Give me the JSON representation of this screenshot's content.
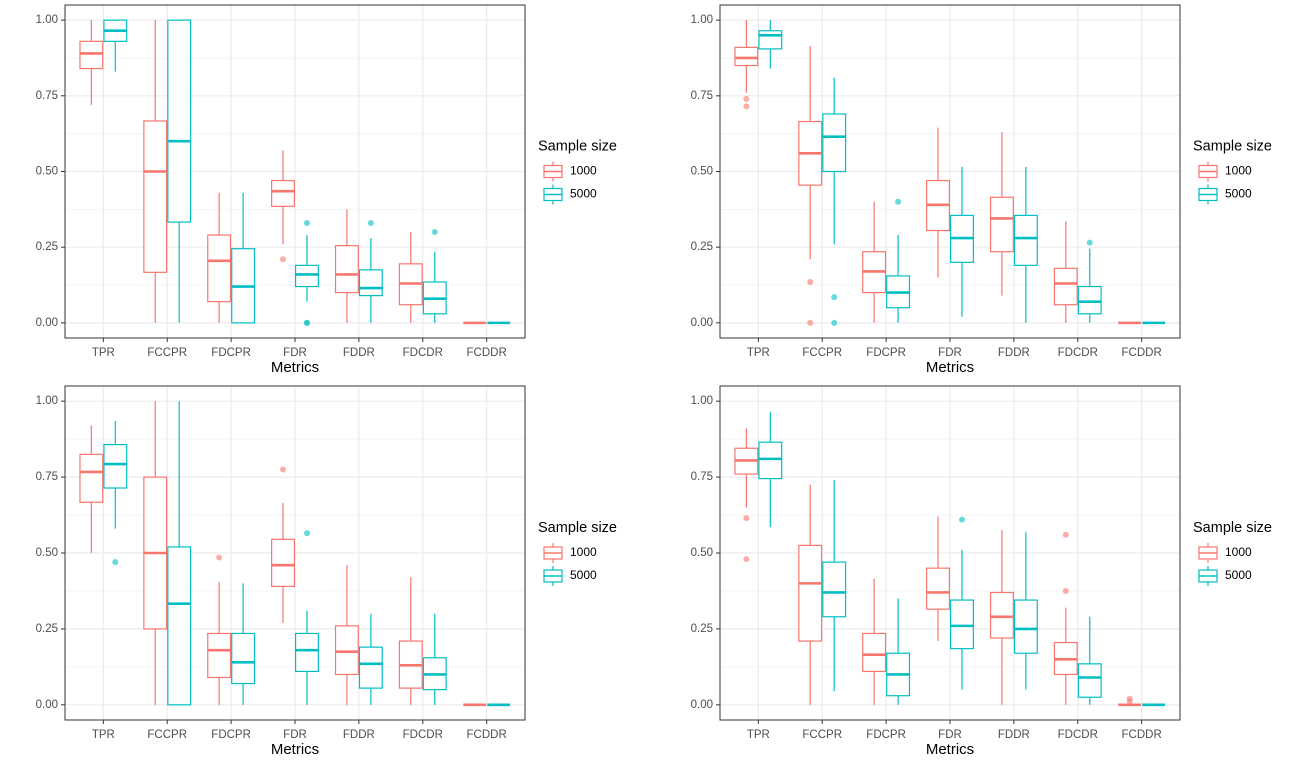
{
  "chart_data": [
    {
      "type": "box",
      "xlabel": "Metrics",
      "legend_title": "Sample size",
      "categories": [
        "TPR",
        "FCCPR",
        "FDCPR",
        "FDR",
        "FDDR",
        "FDCDR",
        "FCDDR"
      ],
      "ylim": [
        -0.05,
        1.05
      ],
      "yticks": [
        {
          "value": 0,
          "label": "0.00"
        },
        {
          "value": 0.25,
          "label": "0.25"
        },
        {
          "value": 0.5,
          "label": "0.50"
        },
        {
          "value": 0.75,
          "label": "0.75"
        },
        {
          "value": 1,
          "label": "1.00"
        }
      ],
      "grid": true,
      "series": [
        {
          "name": "1000",
          "color": "#f8766d",
          "values": [
            {
              "low": 0.72,
              "q1": 0.84,
              "median": 0.89,
              "q3": 0.93,
              "high": 1.0,
              "outliers": []
            },
            {
              "low": 0,
              "q1": 0.167,
              "median": 0.5,
              "q3": 0.667,
              "high": 1.0,
              "outliers": []
            },
            {
              "low": 0,
              "q1": 0.07,
              "median": 0.205,
              "q3": 0.29,
              "high": 0.43,
              "outliers": []
            },
            {
              "low": 0.26,
              "q1": 0.385,
              "median": 0.435,
              "q3": 0.47,
              "high": 0.57,
              "outliers": [
                0.21
              ]
            },
            {
              "low": 0,
              "q1": 0.1,
              "median": 0.16,
              "q3": 0.255,
              "high": 0.375,
              "outliers": []
            },
            {
              "low": 0,
              "q1": 0.06,
              "median": 0.13,
              "q3": 0.195,
              "high": 0.3,
              "outliers": []
            },
            {
              "low": 0,
              "q1": 0,
              "median": 0,
              "q3": 0,
              "high": 0,
              "outliers": []
            }
          ]
        },
        {
          "name": "5000",
          "color": "#00bfc4",
          "values": [
            {
              "low": 0.83,
              "q1": 0.93,
              "median": 0.965,
              "q3": 1.0,
              "high": 1.0,
              "outliers": []
            },
            {
              "low": 0,
              "q1": 0.333,
              "median": 0.6,
              "q3": 1.0,
              "high": 1.0,
              "outliers": []
            },
            {
              "low": 0,
              "q1": 0,
              "median": 0.12,
              "q3": 0.245,
              "high": 0.43,
              "outliers": []
            },
            {
              "low": 0.07,
              "q1": 0.12,
              "median": 0.16,
              "q3": 0.19,
              "high": 0.29,
              "outliers": [
                0.33,
                0,
                0
              ]
            },
            {
              "low": 0,
              "q1": 0.09,
              "median": 0.115,
              "q3": 0.175,
              "high": 0.28,
              "outliers": [
                0.33
              ]
            },
            {
              "low": 0,
              "q1": 0.03,
              "median": 0.08,
              "q3": 0.135,
              "high": 0.235,
              "outliers": [
                0.3
              ]
            },
            {
              "low": 0,
              "q1": 0,
              "median": 0,
              "q3": 0,
              "high": 0,
              "outliers": []
            }
          ]
        }
      ]
    },
    {
      "type": "box",
      "xlabel": "Metrics",
      "legend_title": "Sample size",
      "categories": [
        "TPR",
        "FCCPR",
        "FDCPR",
        "FDR",
        "FDDR",
        "FDCDR",
        "FCDDR"
      ],
      "ylim": [
        -0.05,
        1.05
      ],
      "yticks": [
        {
          "value": 0,
          "label": "0.00"
        },
        {
          "value": 0.25,
          "label": "0.25"
        },
        {
          "value": 0.5,
          "label": "0.50"
        },
        {
          "value": 0.75,
          "label": "0.75"
        },
        {
          "value": 1,
          "label": "1.00"
        }
      ],
      "grid": true,
      "series": [
        {
          "name": "1000",
          "color": "#f8766d",
          "values": [
            {
              "low": 0.76,
              "q1": 0.85,
              "median": 0.875,
              "q3": 0.91,
              "high": 1.0,
              "outliers": [
                0.74,
                0.715
              ]
            },
            {
              "low": 0.21,
              "q1": 0.455,
              "median": 0.56,
              "q3": 0.665,
              "high": 0.915,
              "outliers": [
                0.135,
                0
              ]
            },
            {
              "low": 0,
              "q1": 0.1,
              "median": 0.17,
              "q3": 0.235,
              "high": 0.4,
              "outliers": []
            },
            {
              "low": 0.15,
              "q1": 0.305,
              "median": 0.39,
              "q3": 0.47,
              "high": 0.645,
              "outliers": []
            },
            {
              "low": 0.09,
              "q1": 0.235,
              "median": 0.345,
              "q3": 0.415,
              "high": 0.63,
              "outliers": []
            },
            {
              "low": 0,
              "q1": 0.06,
              "median": 0.13,
              "q3": 0.18,
              "high": 0.335,
              "outliers": []
            },
            {
              "low": 0,
              "q1": 0,
              "median": 0,
              "q3": 0,
              "high": 0,
              "outliers": []
            }
          ]
        },
        {
          "name": "5000",
          "color": "#00bfc4",
          "values": [
            {
              "low": 0.84,
              "q1": 0.905,
              "median": 0.95,
              "q3": 0.965,
              "high": 1.0,
              "outliers": []
            },
            {
              "low": 0.26,
              "q1": 0.5,
              "median": 0.615,
              "q3": 0.69,
              "high": 0.81,
              "outliers": [
                0.085,
                0
              ]
            },
            {
              "low": 0,
              "q1": 0.05,
              "median": 0.1,
              "q3": 0.155,
              "high": 0.29,
              "outliers": [
                0.4
              ]
            },
            {
              "low": 0.02,
              "q1": 0.2,
              "median": 0.28,
              "q3": 0.355,
              "high": 0.515,
              "outliers": []
            },
            {
              "low": 0,
              "q1": 0.19,
              "median": 0.28,
              "q3": 0.355,
              "high": 0.515,
              "outliers": []
            },
            {
              "low": 0,
              "q1": 0.03,
              "median": 0.07,
              "q3": 0.12,
              "high": 0.245,
              "outliers": [
                0.265
              ]
            },
            {
              "low": 0,
              "q1": 0,
              "median": 0,
              "q3": 0,
              "high": 0,
              "outliers": []
            }
          ]
        }
      ]
    },
    {
      "type": "box",
      "xlabel": "Metrics",
      "legend_title": "Sample size",
      "categories": [
        "TPR",
        "FCCPR",
        "FDCPR",
        "FDR",
        "FDDR",
        "FDCDR",
        "FCDDR"
      ],
      "ylim": [
        -0.05,
        1.05
      ],
      "yticks": [
        {
          "value": 0,
          "label": "0.00"
        },
        {
          "value": 0.25,
          "label": "0.25"
        },
        {
          "value": 0.5,
          "label": "0.50"
        },
        {
          "value": 0.75,
          "label": "0.75"
        },
        {
          "value": 1,
          "label": "1.00"
        }
      ],
      "grid": true,
      "series": [
        {
          "name": "1000",
          "color": "#f8766d",
          "values": [
            {
              "low": 0.5,
              "q1": 0.667,
              "median": 0.767,
              "q3": 0.825,
              "high": 0.92,
              "outliers": []
            },
            {
              "low": 0,
              "q1": 0.25,
              "median": 0.5,
              "q3": 0.75,
              "high": 1.0,
              "outliers": []
            },
            {
              "low": 0,
              "q1": 0.09,
              "median": 0.18,
              "q3": 0.235,
              "high": 0.405,
              "outliers": [
                0.485
              ]
            },
            {
              "low": 0.27,
              "q1": 0.39,
              "median": 0.46,
              "q3": 0.545,
              "high": 0.665,
              "outliers": [
                0.775
              ]
            },
            {
              "low": 0,
              "q1": 0.1,
              "median": 0.175,
              "q3": 0.26,
              "high": 0.46,
              "outliers": []
            },
            {
              "low": 0,
              "q1": 0.055,
              "median": 0.13,
              "q3": 0.21,
              "high": 0.42,
              "outliers": []
            },
            {
              "low": 0,
              "q1": 0,
              "median": 0,
              "q3": 0,
              "high": 0,
              "outliers": []
            }
          ]
        },
        {
          "name": "5000",
          "color": "#00bfc4",
          "values": [
            {
              "low": 0.58,
              "q1": 0.714,
              "median": 0.793,
              "q3": 0.857,
              "high": 0.935,
              "outliers": [
                0.47
              ]
            },
            {
              "low": 0,
              "q1": 0,
              "median": 0.333,
              "q3": 0.52,
              "high": 1.0,
              "outliers": []
            },
            {
              "low": 0,
              "q1": 0.07,
              "median": 0.14,
              "q3": 0.235,
              "high": 0.4,
              "outliers": []
            },
            {
              "low": 0,
              "q1": 0.11,
              "median": 0.18,
              "q3": 0.235,
              "high": 0.31,
              "outliers": [
                0.565
              ]
            },
            {
              "low": 0,
              "q1": 0.055,
              "median": 0.135,
              "q3": 0.19,
              "high": 0.3,
              "outliers": []
            },
            {
              "low": 0,
              "q1": 0.05,
              "median": 0.1,
              "q3": 0.155,
              "high": 0.3,
              "outliers": []
            },
            {
              "low": 0,
              "q1": 0,
              "median": 0,
              "q3": 0,
              "high": 0,
              "outliers": []
            }
          ]
        }
      ]
    },
    {
      "type": "box",
      "xlabel": "Metrics",
      "legend_title": "Sample size",
      "categories": [
        "TPR",
        "FCCPR",
        "FDCPR",
        "FDR",
        "FDDR",
        "FDCDR",
        "FCDDR"
      ],
      "ylim": [
        -0.05,
        1.05
      ],
      "yticks": [
        {
          "value": 0,
          "label": "0.00"
        },
        {
          "value": 0.25,
          "label": "0.25"
        },
        {
          "value": 0.5,
          "label": "0.50"
        },
        {
          "value": 0.75,
          "label": "0.75"
        },
        {
          "value": 1,
          "label": "1.00"
        }
      ],
      "grid": true,
      "series": [
        {
          "name": "1000",
          "color": "#f8766d",
          "values": [
            {
              "low": 0.65,
              "q1": 0.76,
              "median": 0.805,
              "q3": 0.845,
              "high": 0.91,
              "outliers": [
                0.615,
                0.48
              ]
            },
            {
              "low": 0,
              "q1": 0.21,
              "median": 0.4,
              "q3": 0.525,
              "high": 0.725,
              "outliers": []
            },
            {
              "low": 0,
              "q1": 0.11,
              "median": 0.165,
              "q3": 0.235,
              "high": 0.415,
              "outliers": []
            },
            {
              "low": 0.21,
              "q1": 0.315,
              "median": 0.37,
              "q3": 0.45,
              "high": 0.62,
              "outliers": []
            },
            {
              "low": 0,
              "q1": 0.22,
              "median": 0.29,
              "q3": 0.37,
              "high": 0.575,
              "outliers": []
            },
            {
              "low": 0,
              "q1": 0.1,
              "median": 0.15,
              "q3": 0.205,
              "high": 0.32,
              "outliers": [
                0.56,
                0.375
              ]
            },
            {
              "low": 0,
              "q1": 0,
              "median": 0,
              "q3": 0,
              "high": 0,
              "outliers": [
                0.02,
                0.01
              ]
            }
          ]
        },
        {
          "name": "5000",
          "color": "#00bfc4",
          "values": [
            {
              "low": 0.585,
              "q1": 0.745,
              "median": 0.81,
              "q3": 0.865,
              "high": 0.965,
              "outliers": []
            },
            {
              "low": 0.045,
              "q1": 0.29,
              "median": 0.37,
              "q3": 0.47,
              "high": 0.74,
              "outliers": []
            },
            {
              "low": 0,
              "q1": 0.03,
              "median": 0.1,
              "q3": 0.17,
              "high": 0.35,
              "outliers": []
            },
            {
              "low": 0.05,
              "q1": 0.185,
              "median": 0.26,
              "q3": 0.345,
              "high": 0.51,
              "outliers": [
                0.61
              ]
            },
            {
              "low": 0.05,
              "q1": 0.17,
              "median": 0.25,
              "q3": 0.345,
              "high": 0.57,
              "outliers": []
            },
            {
              "low": 0,
              "q1": 0.025,
              "median": 0.09,
              "q3": 0.135,
              "high": 0.29,
              "outliers": []
            },
            {
              "low": 0,
              "q1": 0,
              "median": 0,
              "q3": 0,
              "high": 0,
              "outliers": []
            }
          ]
        }
      ]
    }
  ]
}
